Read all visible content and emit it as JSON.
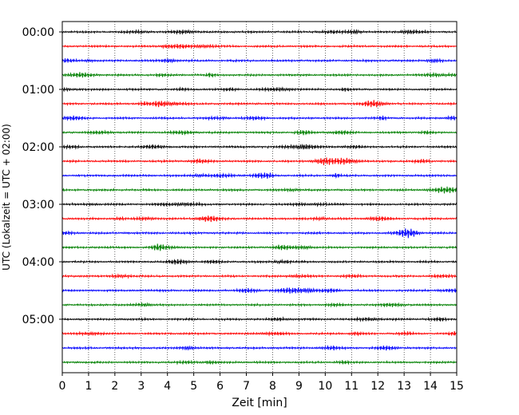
{
  "chart_data": {
    "type": "line",
    "title": "",
    "xlabel": "Zeit  [min]",
    "ylabel": "UTC (Lokalzeit = UTC + 02:00)",
    "xlim": [
      0,
      15
    ],
    "x_ticks": [
      "0",
      "1",
      "2",
      "3",
      "4",
      "5",
      "6",
      "7",
      "8",
      "9",
      "10",
      "11",
      "12",
      "13",
      "14",
      "15"
    ],
    "y_ticks": [
      "00:00",
      "01:00",
      "02:00",
      "03:00",
      "04:00",
      "05:00"
    ],
    "grid": "vertical dotted at each minute",
    "trace_interval_minutes": 15,
    "traces_count": 24,
    "trace_colors": [
      "#000000",
      "#ff0000",
      "#0000ff",
      "#008000"
    ],
    "annotations": {
      "event": {
        "trace_start_utc": "02:15",
        "x_minutes": 10.0,
        "note": "larger amplitude burst"
      }
    }
  }
}
